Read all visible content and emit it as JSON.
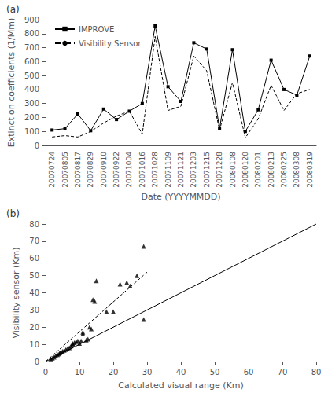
{
  "chart_data": [
    {
      "type": "line",
      "annotations": [
        "(a)"
      ],
      "xlabel": "Date (YYYYMMDD)",
      "ylabel": "Extinction coefficients (1/Mm)",
      "categories": [
        "20070724",
        "20070805",
        "20070817",
        "20070829",
        "20070910",
        "20070922",
        "20071004",
        "20071016",
        "20071028",
        "20071109",
        "20071121",
        "20071203",
        "20071215",
        "20071228",
        "20080108",
        "20080120",
        "20080201",
        "20080213",
        "20080225",
        "20080308",
        "20080319"
      ],
      "series": [
        {
          "name": "IMPROVE",
          "color": "#000000",
          "marker": "square",
          "line_style": "solid",
          "values": [
            110,
            120,
            225,
            105,
            260,
            185,
            245,
            300,
            855,
            420,
            315,
            735,
            690,
            120,
            685,
            100,
            255,
            610,
            400,
            360,
            640
          ]
        },
        {
          "name": "Visibility Sensor",
          "color": "#000000",
          "line_style": "dashed",
          "values": [
            60,
            70,
            60,
            100,
            160,
            210,
            245,
            80,
            780,
            250,
            280,
            640,
            535,
            110,
            450,
            55,
            190,
            430,
            250,
            370,
            400
          ]
        }
      ],
      "ylim": [
        0,
        900
      ],
      "yticks": [
        0,
        100,
        200,
        300,
        400,
        500,
        600,
        700,
        800,
        900
      ],
      "legend": "upper left",
      "grid": false
    },
    {
      "type": "scatter",
      "annotations": [
        "(b)"
      ],
      "xlabel": "Calculated visual range (Km)",
      "ylabel": "Visibility sensor (Km)",
      "series": [
        {
          "type": "line",
          "color": "#000000",
          "line_style": "solid",
          "x": [
            0,
            80
          ],
          "values": [
            0,
            80
          ]
        },
        {
          "type": "line",
          "color": "#000000",
          "line_style": "dashed",
          "x": [
            0,
            30
          ],
          "values": [
            0,
            52
          ]
        },
        {
          "type": "scatter",
          "color": "#000000",
          "marker": "triangle",
          "x": [
            1.5,
            2.0,
            2.5,
            3.0,
            3.5,
            4.0,
            4.2,
            4.5,
            5.0,
            5.5,
            6.0,
            6.5,
            7.0,
            7.5,
            8.0,
            8.0,
            8.5,
            9.0,
            9.5,
            10.0,
            10.5,
            11.0,
            11.0,
            12.0,
            12.5,
            13.0,
            13.5,
            14.0,
            14.5,
            15.0,
            18.0,
            20.0,
            22.0,
            24.0,
            25.0,
            27.0,
            29.0
          ],
          "values": [
            1.5,
            2.0,
            2.5,
            3.5,
            4.0,
            4.5,
            5.0,
            5.5,
            6.0,
            6.5,
            7.0,
            7.5,
            8.0,
            9.0,
            10.0,
            10.5,
            11.0,
            11.5,
            12.0,
            10.5,
            12.0,
            16.0,
            17.0,
            12.5,
            13.0,
            20.0,
            19.0,
            36.0,
            35.0,
            47.0,
            29.0,
            29.0,
            45.0,
            46.0,
            44.0,
            50.0,
            24.5
          ]
        },
        {
          "type": "scatter",
          "color": "#000000",
          "marker": "triangle",
          "x": [
            29.0
          ],
          "values": [
            67.0
          ]
        }
      ],
      "xlim": [
        0,
        80
      ],
      "ylim": [
        0,
        80
      ],
      "xticks": [
        0,
        10,
        20,
        30,
        40,
        50,
        60,
        70,
        80
      ],
      "yticks": [
        0,
        10,
        20,
        30,
        40,
        50,
        60,
        70,
        80
      ],
      "grid": false
    }
  ]
}
